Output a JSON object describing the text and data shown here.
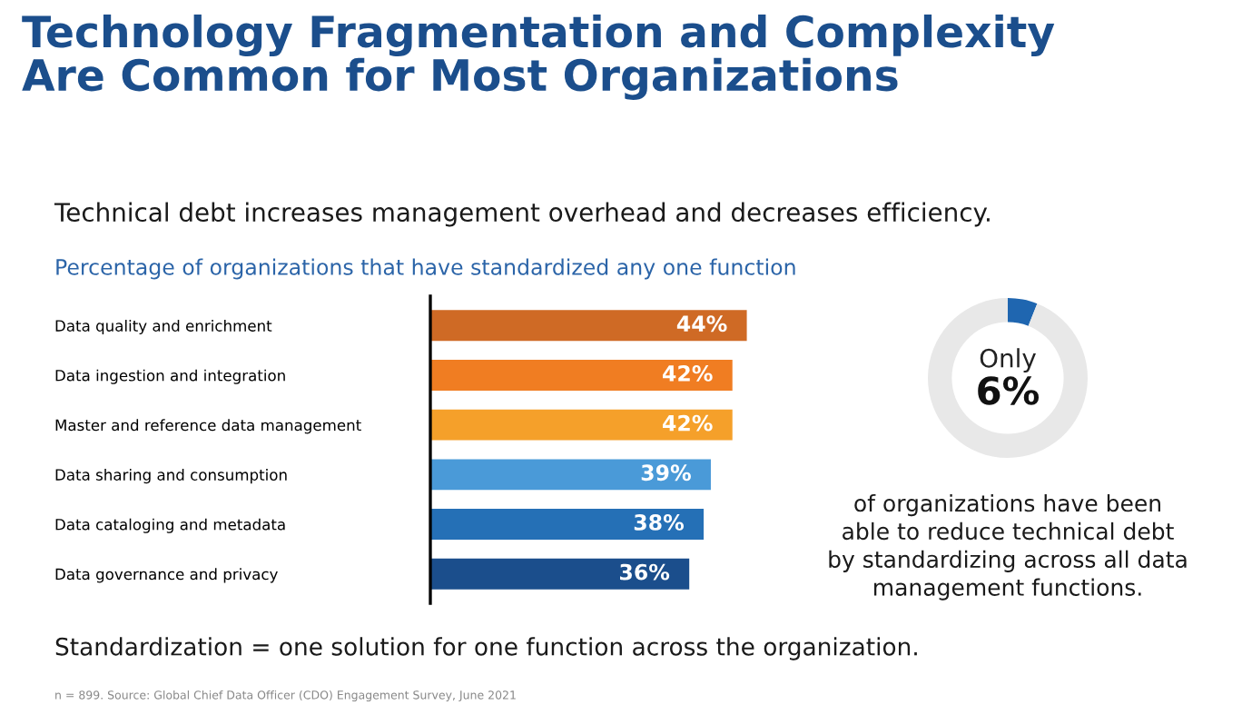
{
  "chart_data": [
    {
      "type": "bar",
      "orientation": "horizontal",
      "title": "Technology Fragmentation and Complexity\nAre Common for Most Organizations",
      "subtitle": "Technical debt increases management overhead and decreases efficiency.",
      "categories": [
        "Data quality and enrichment",
        "Data ingestion and integration",
        "Master and reference data management",
        "Data sharing and consumption",
        "Data cataloging and metadata",
        "Data governance and privacy"
      ],
      "values": [
        44,
        42,
        42,
        39,
        38,
        36
      ],
      "colors": [
        "#cf6a25",
        "#f07d22",
        "#f5a02a",
        "#4a9ad8",
        "#2570b6",
        "#1b4e8c"
      ],
      "value_labels": [
        "44%",
        "42%",
        "42%",
        "39%",
        "38%",
        "36%"
      ],
      "annotations": [
        "Percentage of organizations that have standardized any one function",
        "Standardization = one solution for one function across the organization.",
        "n = 899. Source: Global Chief Data Officer (CDO) Engagement Survey, June 2021"
      ],
      "grid": false,
      "legend": false
    },
    {
      "type": "donut",
      "categories": [
        null,
        null
      ],
      "values": [
        6,
        94
      ],
      "colors": [
        "#1f66b0",
        "#e8e8e8"
      ],
      "annotations": [
        "Only",
        "6%",
        "of organizations have been\nable to reduce technical debt\nby standardizing across all data\nmanagement functions."
      ],
      "legend": false
    }
  ]
}
